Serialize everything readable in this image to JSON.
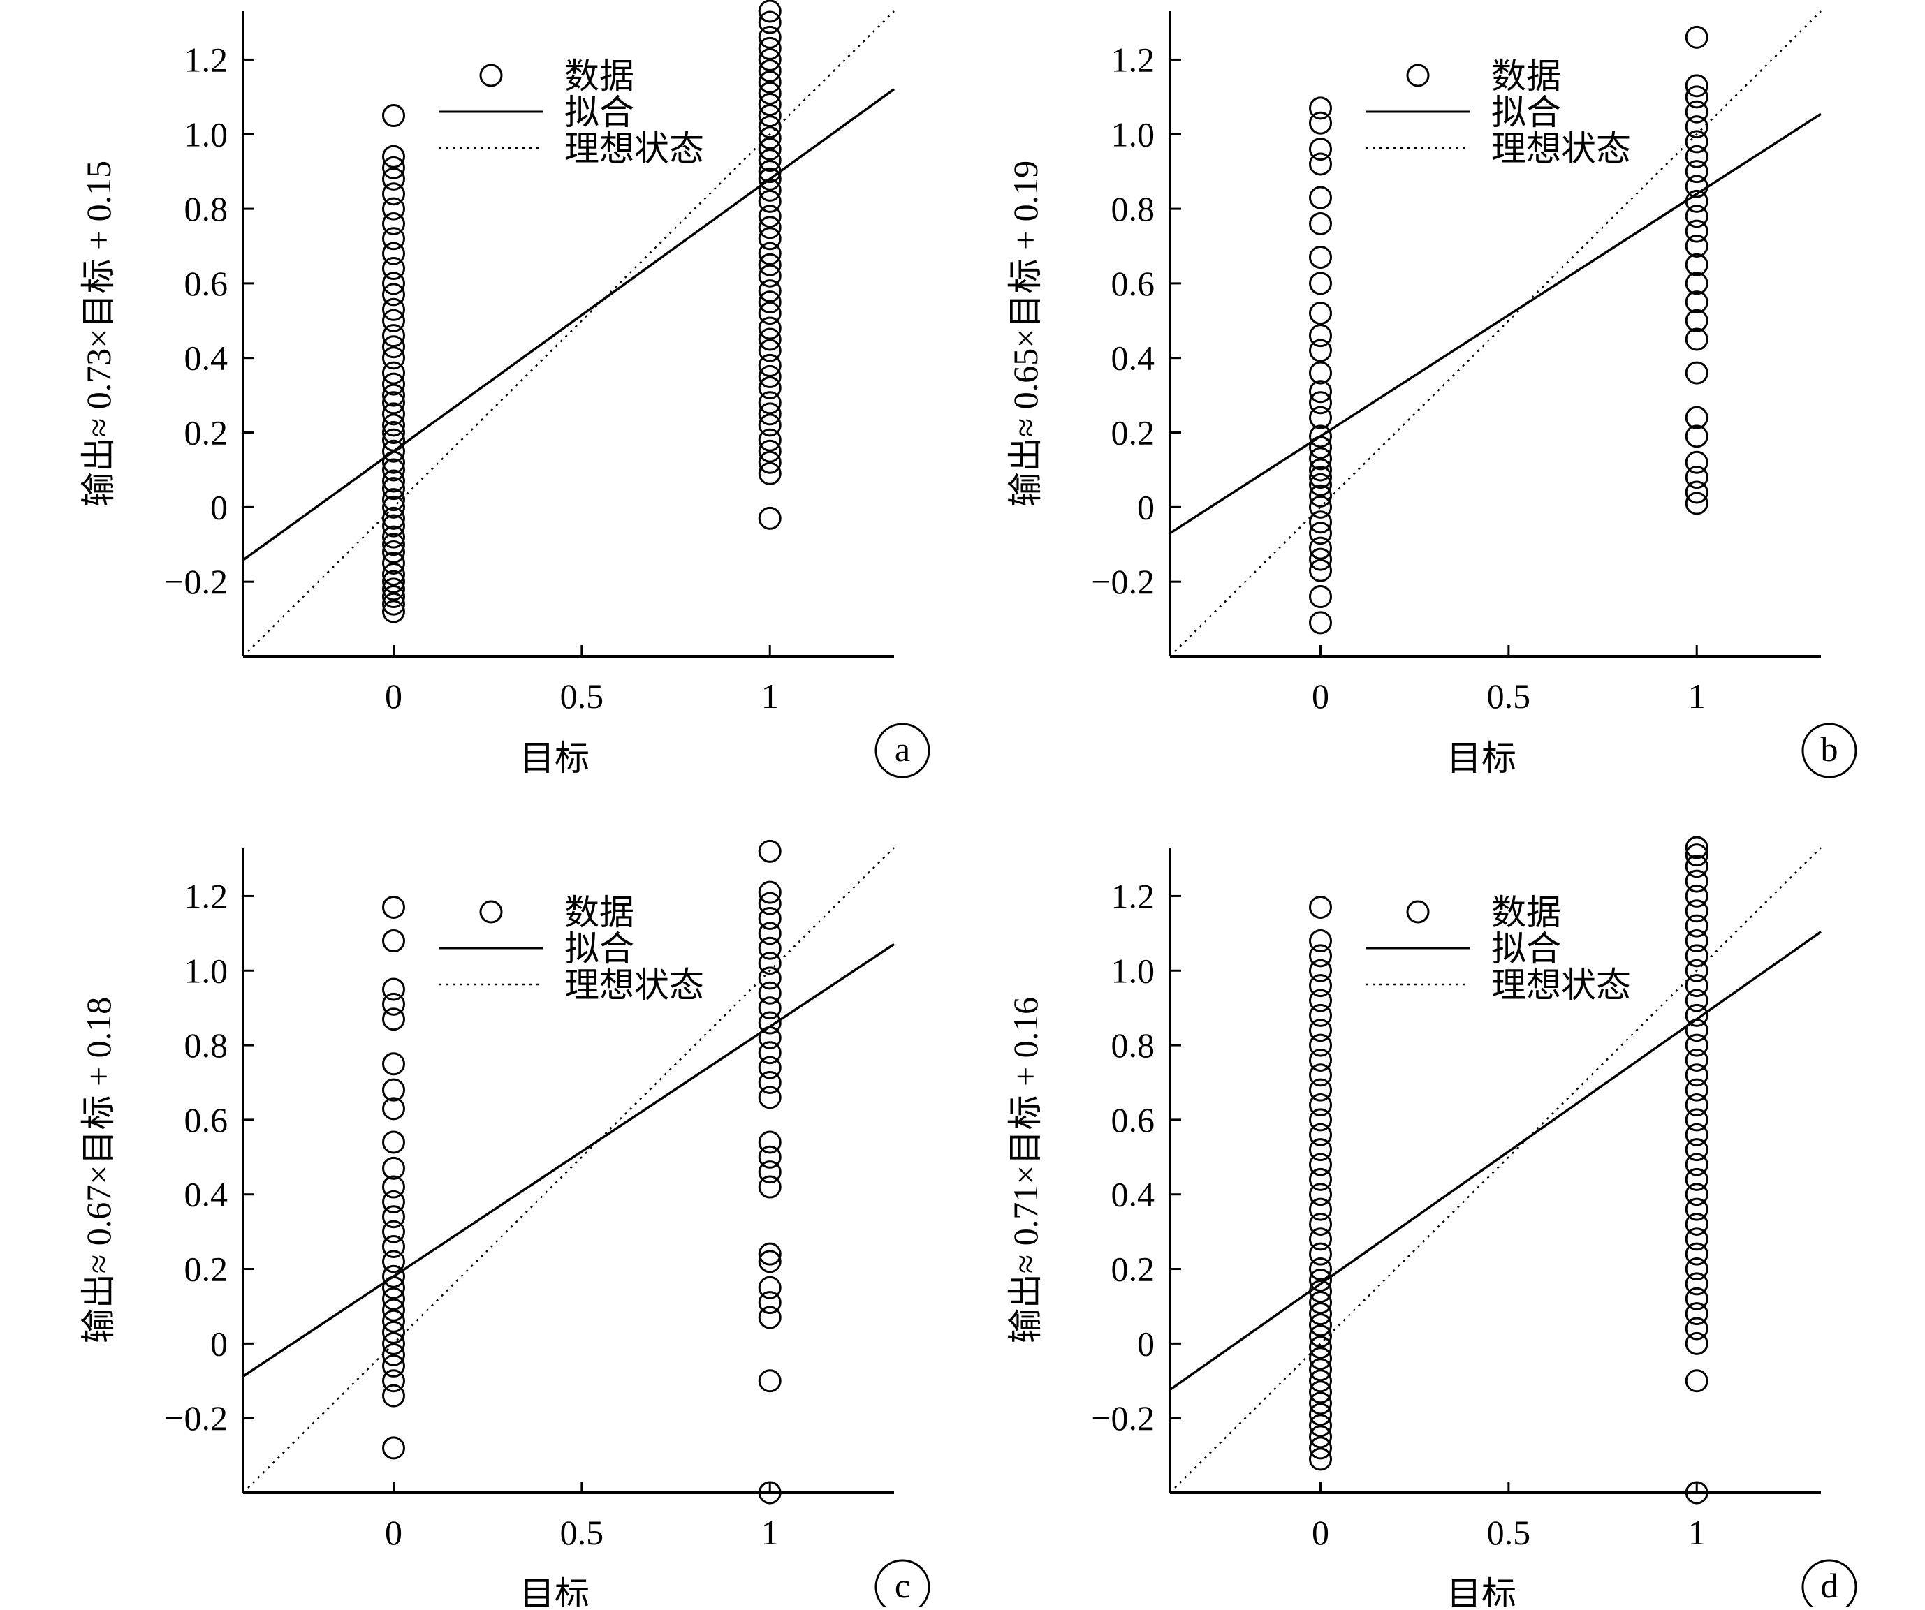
{
  "legend": {
    "data_label": "数据",
    "fit_label": "拟合",
    "ideal_label": "理想状态"
  },
  "chart_data": [
    {
      "type": "scatter",
      "panel": "a",
      "xlabel": "目标",
      "ylabel": "输出≈ 0.73×目标 + 0.15",
      "xticks": [
        "0",
        "0.5",
        "1"
      ],
      "yticks": [
        "−0.2",
        "0",
        "0.2",
        "0.4",
        "0.6",
        "0.8",
        "1.0",
        "1.2"
      ],
      "xlim": [
        -0.4,
        1.33
      ],
      "ylim": [
        -0.4,
        1.33
      ],
      "fit": {
        "slope": 0.73,
        "intercept": 0.15
      },
      "points": {
        "0": [
          -0.28,
          -0.26,
          -0.24,
          -0.22,
          -0.2,
          -0.18,
          -0.15,
          -0.12,
          -0.1,
          -0.08,
          -0.05,
          -0.03,
          0.0,
          0.02,
          0.05,
          0.07,
          0.1,
          0.12,
          0.15,
          0.18,
          0.2,
          0.22,
          0.25,
          0.28,
          0.3,
          0.33,
          0.36,
          0.4,
          0.43,
          0.46,
          0.5,
          0.53,
          0.57,
          0.6,
          0.64,
          0.68,
          0.72,
          0.76,
          0.8,
          0.84,
          0.88,
          0.91,
          0.94,
          1.05
        ],
        "1": [
          -0.03,
          0.09,
          0.12,
          0.15,
          0.18,
          0.22,
          0.25,
          0.28,
          0.32,
          0.35,
          0.38,
          0.42,
          0.45,
          0.48,
          0.52,
          0.55,
          0.58,
          0.62,
          0.65,
          0.68,
          0.72,
          0.75,
          0.78,
          0.82,
          0.85,
          0.88,
          0.9,
          0.93,
          0.96,
          0.99,
          1.02,
          1.05,
          1.08,
          1.11,
          1.14,
          1.17,
          1.2,
          1.23,
          1.26,
          1.3,
          1.33
        ]
      }
    },
    {
      "type": "scatter",
      "panel": "b",
      "xlabel": "目标",
      "ylabel": "输出≈ 0.65×目标 + 0.19",
      "xticks": [
        "0",
        "0.5",
        "1"
      ],
      "yticks": [
        "−0.2",
        "0",
        "0.2",
        "0.4",
        "0.6",
        "0.8",
        "1.0",
        "1.2"
      ],
      "xlim": [
        -0.4,
        1.33
      ],
      "ylim": [
        -0.4,
        1.33
      ],
      "fit": {
        "slope": 0.65,
        "intercept": 0.19
      },
      "points": {
        "0": [
          -0.31,
          -0.24,
          -0.17,
          -0.14,
          -0.11,
          -0.07,
          -0.04,
          0.0,
          0.03,
          0.06,
          0.08,
          0.1,
          0.13,
          0.16,
          0.19,
          0.24,
          0.28,
          0.31,
          0.36,
          0.42,
          0.46,
          0.52,
          0.6,
          0.67,
          0.76,
          0.83,
          0.92,
          0.96,
          1.03,
          1.07
        ],
        "1": [
          0.01,
          0.04,
          0.08,
          0.12,
          0.19,
          0.24,
          0.36,
          0.45,
          0.5,
          0.55,
          0.6,
          0.65,
          0.7,
          0.74,
          0.78,
          0.82,
          0.86,
          0.9,
          0.94,
          0.98,
          1.02,
          1.06,
          1.1,
          1.13,
          1.26
        ]
      }
    },
    {
      "type": "scatter",
      "panel": "c",
      "xlabel": "目标",
      "ylabel": "输出≈ 0.67×目标 + 0.18",
      "xticks": [
        "0",
        "0.5",
        "1"
      ],
      "yticks": [
        "−0.2",
        "0",
        "0.2",
        "0.4",
        "0.6",
        "0.8",
        "1.0",
        "1.2"
      ],
      "xlim": [
        -0.4,
        1.33
      ],
      "ylim": [
        -0.4,
        1.33
      ],
      "fit": {
        "slope": 0.67,
        "intercept": 0.18
      },
      "points": {
        "0": [
          -0.28,
          -0.14,
          -0.1,
          -0.06,
          -0.03,
          0.0,
          0.03,
          0.06,
          0.09,
          0.12,
          0.15,
          0.18,
          0.22,
          0.26,
          0.3,
          0.34,
          0.38,
          0.42,
          0.47,
          0.54,
          0.63,
          0.68,
          0.75,
          0.87,
          0.91,
          0.95,
          1.08,
          1.17
        ],
        "1": [
          -0.4,
          -0.1,
          0.07,
          0.11,
          0.15,
          0.22,
          0.24,
          0.42,
          0.46,
          0.5,
          0.54,
          0.66,
          0.7,
          0.74,
          0.78,
          0.82,
          0.86,
          0.9,
          0.94,
          0.98,
          1.02,
          1.06,
          1.1,
          1.14,
          1.18,
          1.21,
          1.32
        ]
      }
    },
    {
      "type": "scatter",
      "panel": "d",
      "xlabel": "目标",
      "ylabel": "输出≈ 0.71×目标 + 0.16",
      "xticks": [
        "0",
        "0.5",
        "1"
      ],
      "yticks": [
        "−0.2",
        "0",
        "0.2",
        "0.4",
        "0.6",
        "0.8",
        "1.0",
        "1.2"
      ],
      "xlim": [
        -0.4,
        1.33
      ],
      "ylim": [
        -0.4,
        1.33
      ],
      "fit": {
        "slope": 0.71,
        "intercept": 0.16
      },
      "points": {
        "0": [
          -0.31,
          -0.28,
          -0.25,
          -0.22,
          -0.19,
          -0.16,
          -0.13,
          -0.1,
          -0.07,
          -0.04,
          -0.01,
          0.02,
          0.05,
          0.08,
          0.11,
          0.14,
          0.17,
          0.2,
          0.24,
          0.28,
          0.32,
          0.36,
          0.4,
          0.44,
          0.48,
          0.52,
          0.56,
          0.6,
          0.64,
          0.68,
          0.72,
          0.76,
          0.8,
          0.84,
          0.88,
          0.92,
          0.96,
          1.0,
          1.04,
          1.08,
          1.17
        ],
        "1": [
          -0.4,
          -0.1,
          0.0,
          0.04,
          0.08,
          0.12,
          0.16,
          0.2,
          0.24,
          0.28,
          0.32,
          0.36,
          0.4,
          0.44,
          0.48,
          0.52,
          0.56,
          0.6,
          0.64,
          0.68,
          0.72,
          0.76,
          0.8,
          0.84,
          0.88,
          0.92,
          0.96,
          1.0,
          1.04,
          1.08,
          1.12,
          1.16,
          1.2,
          1.24,
          1.28,
          1.31,
          1.33
        ]
      }
    }
  ]
}
